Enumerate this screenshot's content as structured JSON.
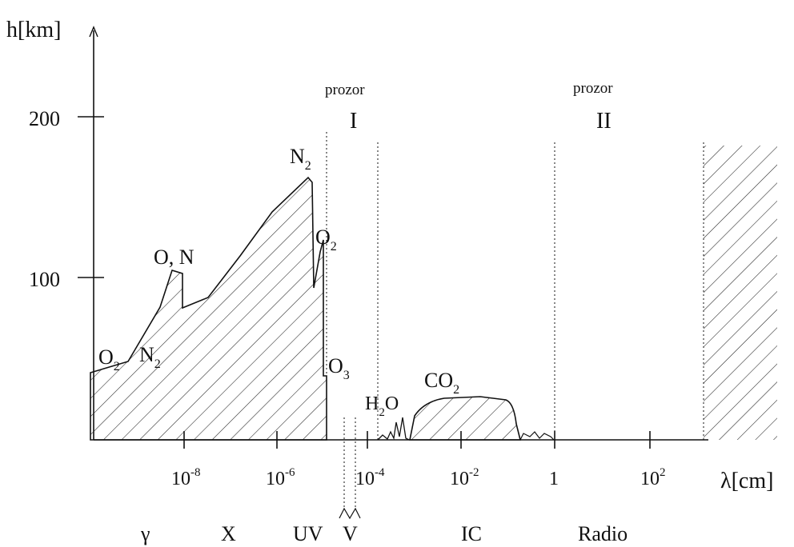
{
  "axes": {
    "y_label": "h[km]",
    "x_label": "λ[cm]",
    "y_ticks": [
      {
        "label": "200",
        "value": 200
      },
      {
        "label": "100",
        "value": 100
      }
    ],
    "x_ticks": [
      {
        "base": "10",
        "exp": "-8"
      },
      {
        "base": "10",
        "exp": "-6"
      },
      {
        "base": "10",
        "exp": "-4"
      },
      {
        "base": "10",
        "exp": "-2"
      },
      {
        "base": "1",
        "exp": ""
      },
      {
        "base": "10",
        "exp": "2"
      }
    ]
  },
  "windows": [
    {
      "title": "prozor",
      "numeral": "I"
    },
    {
      "title": "prozor",
      "numeral": "II"
    }
  ],
  "gas_labels": [
    {
      "main": "O",
      "sub": "2",
      "id": "o2-low"
    },
    {
      "main": "N",
      "sub": "2",
      "id": "n2-low"
    },
    {
      "main": "O, N",
      "sub": "",
      "id": "o-n"
    },
    {
      "main": "N",
      "sub": "2",
      "id": "n2-peak"
    },
    {
      "main": "O",
      "sub": "2",
      "id": "o2-uv"
    },
    {
      "main": "O",
      "sub": "3",
      "id": "o3"
    },
    {
      "main": "H",
      "sub": "2",
      "tail": "O",
      "id": "h2o"
    },
    {
      "main": "CO",
      "sub": "2",
      "id": "co2"
    }
  ],
  "bands": [
    {
      "label": "γ",
      "id": "gamma"
    },
    {
      "label": "X",
      "id": "x-ray"
    },
    {
      "label": "UV",
      "id": "uv"
    },
    {
      "label": "V",
      "id": "visible"
    },
    {
      "label": "IC",
      "id": "infrared"
    },
    {
      "label": "Radio",
      "id": "radio"
    }
  ]
}
